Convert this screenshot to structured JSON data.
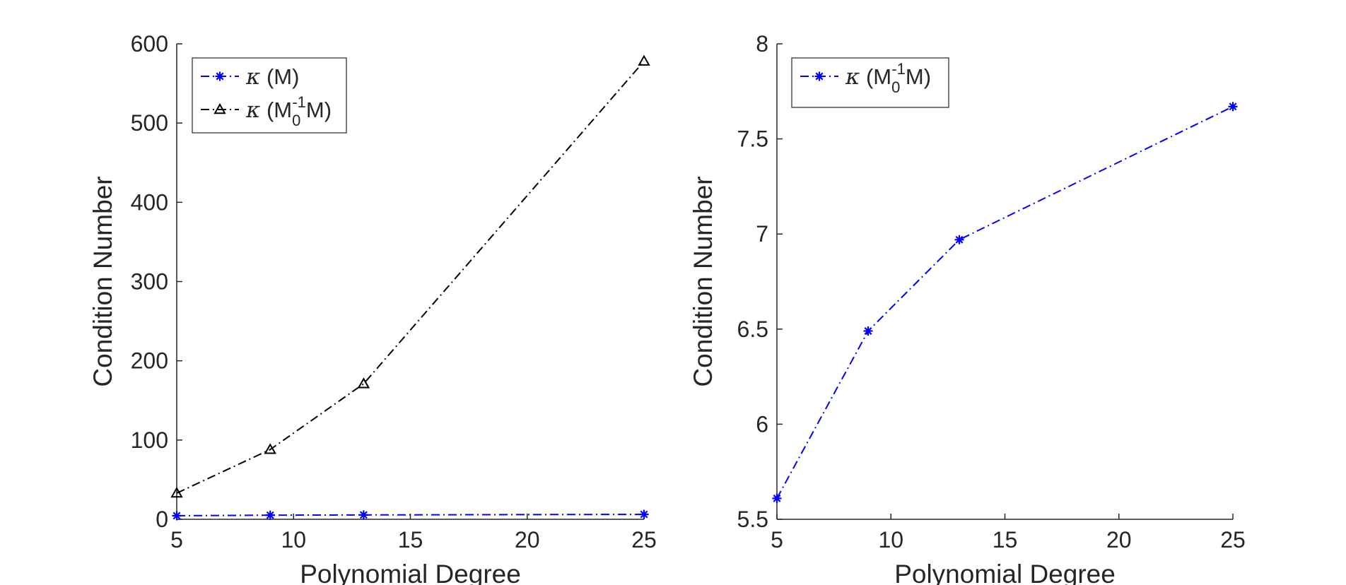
{
  "chart_data": [
    {
      "type": "line",
      "title": "",
      "xlabel": "Polynomial Degree",
      "ylabel": "Condition Number",
      "xlim": [
        5,
        25
      ],
      "ylim": [
        0,
        600
      ],
      "xticks": [
        5,
        10,
        15,
        20,
        25
      ],
      "yticks": [
        0,
        100,
        200,
        300,
        400,
        500,
        600
      ],
      "grid": false,
      "legend_position": "top-left",
      "series": [
        {
          "name": "κ (M)",
          "legend_base": "κ (M)",
          "color": "#0000ff",
          "marker": "asterisk",
          "linestyle": "dash-dot",
          "x": [
            5,
            9,
            13,
            25
          ],
          "y": [
            4.5,
            5.2,
            5.5,
            6.2
          ]
        },
        {
          "name": "κ (M0^-1 M)",
          "legend_base": "κ (M",
          "legend_sub": "0",
          "legend_sup": "-1",
          "legend_tail": "M)",
          "color": "#000000",
          "marker": "triangle",
          "linestyle": "dash-dot",
          "x": [
            5,
            9,
            13,
            25
          ],
          "y": [
            33,
            88,
            171,
            578
          ]
        }
      ]
    },
    {
      "type": "line",
      "title": "",
      "xlabel": "Polynomial Degree",
      "ylabel": "Condition Number",
      "xlim": [
        5,
        25
      ],
      "ylim": [
        5.5,
        8
      ],
      "xticks": [
        5,
        10,
        15,
        20,
        25
      ],
      "yticks": [
        5.5,
        6,
        6.5,
        7,
        7.5,
        8
      ],
      "ytick_labels": [
        "5.5",
        "6",
        "6.5",
        "7",
        "7.5",
        "8"
      ],
      "grid": false,
      "legend_position": "top-left",
      "series": [
        {
          "name": "κ (M0^-1 M)",
          "legend_base": "κ (M",
          "legend_sub": "0",
          "legend_sup": "-1",
          "legend_tail": "M)",
          "color": "#0000ff",
          "marker": "asterisk",
          "linestyle": "dash-dot",
          "x": [
            5,
            9,
            13,
            25
          ],
          "y": [
            5.61,
            6.49,
            6.97,
            7.67
          ]
        }
      ]
    }
  ]
}
